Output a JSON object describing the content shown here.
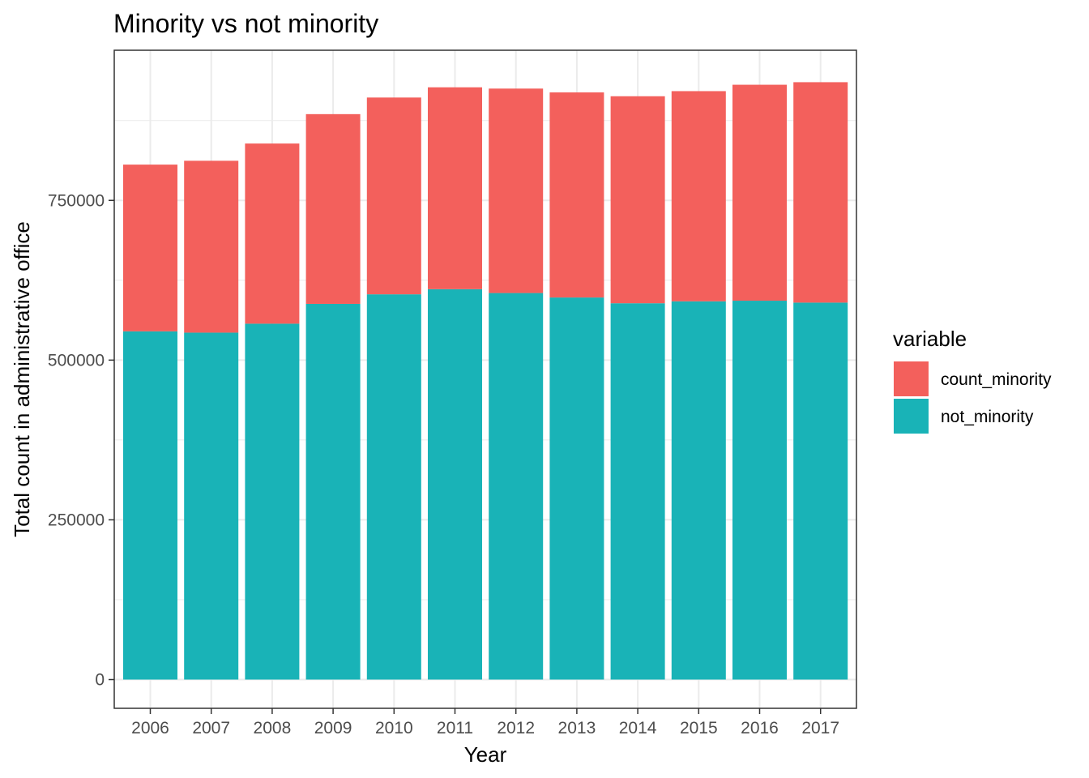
{
  "chart_data": {
    "type": "bar",
    "stacked": true,
    "title": "Minority vs not minority",
    "xlabel": "Year",
    "ylabel": "Total count in administrative office",
    "categories": [
      "2006",
      "2007",
      "2008",
      "2009",
      "2010",
      "2011",
      "2012",
      "2013",
      "2014",
      "2015",
      "2016",
      "2017"
    ],
    "series": [
      {
        "name": "not_minority",
        "color": "#19b3b7",
        "values": [
          545000,
          543000,
          557000,
          588000,
          603000,
          611000,
          605000,
          598000,
          589000,
          592000,
          593000,
          590000
        ]
      },
      {
        "name": "count_minority",
        "color": "#f3605c",
        "values": [
          261000,
          269000,
          282000,
          297000,
          308000,
          316000,
          320000,
          321000,
          324000,
          329000,
          338000,
          345000
        ]
      }
    ],
    "yticks": [
      "0",
      "250000",
      "500000",
      "750000"
    ],
    "ylim": [
      -45000,
      985000
    ],
    "grid": true,
    "legend": {
      "title": "variable",
      "position": "right",
      "items": [
        {
          "name": "count_minority",
          "color": "#f3605c"
        },
        {
          "name": "not_minority",
          "color": "#19b3b7"
        }
      ]
    }
  }
}
